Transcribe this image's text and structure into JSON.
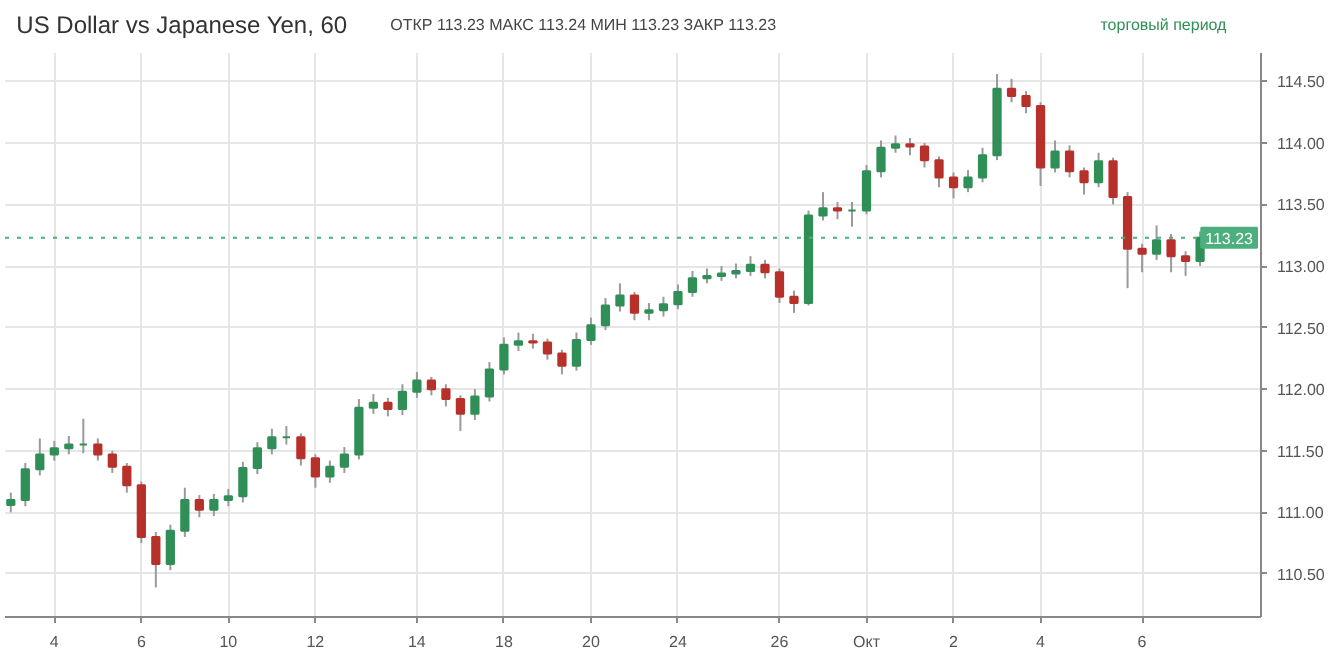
{
  "chart_data": {
    "type": "candlestick",
    "title": "US Dollar vs Japanese Yen, 60",
    "annotations": [
      "ОТКР 113.23 МАКС 113.24 МИН 113.23 ЗАКР 113.23",
      "торговый период"
    ],
    "categories": [
      null,
      null,
      null,
      "4",
      null,
      null,
      null,
      null,
      null,
      "6",
      null,
      null,
      null,
      null,
      null,
      "10",
      null,
      null,
      null,
      null,
      null,
      "12",
      null,
      null,
      null,
      null,
      null,
      null,
      "14",
      null,
      null,
      null,
      null,
      null,
      "18",
      null,
      null,
      null,
      null,
      null,
      "20",
      null,
      null,
      null,
      null,
      null,
      "24",
      null,
      null,
      null,
      null,
      null,
      null,
      "26",
      null,
      null,
      null,
      null,
      null,
      "Окт",
      null,
      null,
      null,
      null,
      null,
      "2",
      null,
      null,
      null,
      null,
      null,
      "4",
      null,
      null,
      null,
      null,
      null,
      null,
      "6",
      null,
      null,
      null,
      null
    ],
    "ohlc": [
      [
        111.06,
        111.16,
        111.0,
        111.1
      ],
      [
        111.1,
        111.4,
        111.05,
        111.35
      ],
      [
        111.35,
        111.6,
        111.3,
        111.47
      ],
      [
        111.47,
        111.58,
        111.42,
        111.52
      ],
      [
        111.52,
        111.62,
        111.47,
        111.55
      ],
      [
        111.55,
        111.76,
        111.48,
        111.55
      ],
      [
        111.55,
        111.6,
        111.42,
        111.47
      ],
      [
        111.47,
        111.5,
        111.32,
        111.37
      ],
      [
        111.37,
        111.4,
        111.16,
        111.22
      ],
      [
        111.22,
        111.25,
        110.75,
        110.8
      ],
      [
        110.8,
        110.84,
        110.39,
        110.58
      ],
      [
        110.58,
        110.9,
        110.53,
        110.85
      ],
      [
        110.85,
        111.2,
        110.8,
        111.1
      ],
      [
        111.1,
        111.14,
        110.96,
        111.02
      ],
      [
        111.02,
        111.15,
        110.97,
        111.1
      ],
      [
        111.1,
        111.19,
        111.05,
        111.13
      ],
      [
        111.13,
        111.41,
        111.08,
        111.36
      ],
      [
        111.36,
        111.57,
        111.31,
        111.52
      ],
      [
        111.52,
        111.68,
        111.47,
        111.61
      ],
      [
        111.61,
        111.7,
        111.55,
        111.61
      ],
      [
        111.61,
        111.64,
        111.38,
        111.44
      ],
      [
        111.44,
        111.47,
        111.2,
        111.29
      ],
      [
        111.29,
        111.42,
        111.24,
        111.37
      ],
      [
        111.37,
        111.53,
        111.32,
        111.47
      ],
      [
        111.47,
        111.92,
        111.43,
        111.85
      ],
      [
        111.85,
        111.96,
        111.8,
        111.89
      ],
      [
        111.89,
        111.93,
        111.78,
        111.84
      ],
      [
        111.84,
        112.04,
        111.79,
        111.98
      ],
      [
        111.98,
        112.14,
        111.93,
        112.07
      ],
      [
        112.07,
        112.1,
        111.95,
        112.0
      ],
      [
        112.0,
        112.04,
        111.86,
        111.92
      ],
      [
        111.92,
        111.95,
        111.66,
        111.8
      ],
      [
        111.8,
        112.0,
        111.75,
        111.94
      ],
      [
        111.94,
        112.22,
        111.9,
        112.16
      ],
      [
        112.16,
        112.42,
        112.12,
        112.36
      ],
      [
        112.36,
        112.46,
        112.31,
        112.39
      ],
      [
        112.39,
        112.45,
        112.33,
        112.38
      ],
      [
        112.38,
        112.41,
        112.24,
        112.29
      ],
      [
        112.29,
        112.32,
        112.12,
        112.19
      ],
      [
        112.19,
        112.46,
        112.15,
        112.4
      ],
      [
        112.4,
        112.58,
        112.36,
        112.52
      ],
      [
        112.52,
        112.74,
        112.48,
        112.68
      ],
      [
        112.68,
        112.86,
        112.63,
        112.76
      ],
      [
        112.76,
        112.79,
        112.56,
        112.62
      ],
      [
        112.62,
        112.7,
        112.56,
        112.64
      ],
      [
        112.64,
        112.75,
        112.59,
        112.69
      ],
      [
        112.69,
        112.85,
        112.65,
        112.79
      ],
      [
        112.79,
        112.96,
        112.75,
        112.9
      ],
      [
        112.9,
        112.98,
        112.86,
        112.92
      ],
      [
        112.92,
        113.0,
        112.88,
        112.94
      ],
      [
        112.94,
        113.02,
        112.9,
        112.96
      ],
      [
        112.96,
        113.08,
        112.92,
        113.01
      ],
      [
        113.01,
        113.05,
        112.9,
        112.95
      ],
      [
        112.95,
        112.98,
        112.7,
        112.75
      ],
      [
        112.75,
        112.8,
        112.62,
        112.7
      ],
      [
        112.7,
        113.45,
        112.68,
        113.41
      ],
      [
        113.41,
        113.6,
        113.37,
        113.47
      ],
      [
        113.47,
        113.52,
        113.38,
        113.45
      ],
      [
        113.45,
        113.52,
        113.32,
        113.45
      ],
      [
        113.45,
        113.82,
        113.42,
        113.77
      ],
      [
        113.77,
        114.02,
        113.72,
        113.96
      ],
      [
        113.96,
        114.06,
        113.92,
        113.99
      ],
      [
        113.99,
        114.04,
        113.9,
        113.97
      ],
      [
        113.97,
        114.0,
        113.8,
        113.86
      ],
      [
        113.86,
        113.89,
        113.64,
        113.72
      ],
      [
        113.72,
        113.76,
        113.55,
        113.64
      ],
      [
        113.64,
        113.78,
        113.6,
        113.72
      ],
      [
        113.72,
        113.96,
        113.68,
        113.9
      ],
      [
        113.9,
        114.56,
        113.86,
        114.44
      ],
      [
        114.44,
        114.52,
        114.33,
        114.38
      ],
      [
        114.38,
        114.42,
        114.24,
        114.3
      ],
      [
        114.3,
        114.33,
        113.65,
        113.8
      ],
      [
        113.8,
        114.02,
        113.76,
        113.93
      ],
      [
        113.93,
        113.98,
        113.72,
        113.77
      ],
      [
        113.77,
        113.8,
        113.58,
        113.68
      ],
      [
        113.68,
        113.92,
        113.64,
        113.85
      ],
      [
        113.85,
        113.88,
        113.5,
        113.56
      ],
      [
        113.56,
        113.6,
        112.82,
        113.14
      ],
      [
        113.14,
        113.18,
        112.95,
        113.1
      ],
      [
        113.1,
        113.33,
        113.05,
        113.21
      ],
      [
        113.21,
        113.26,
        112.95,
        113.08
      ],
      [
        113.08,
        113.12,
        112.92,
        113.04
      ],
      [
        113.04,
        113.28,
        113.0,
        113.23
      ]
    ],
    "colors": [
      "#2f8f57",
      "#2f8f57",
      "#2f8f57",
      "#2f8f57",
      "#2f8f57",
      "#2f8f57",
      "#b8302a",
      "#b8302a",
      "#b8302a",
      "#b8302a",
      "#b8302a",
      "#2f8f57",
      "#2f8f57",
      "#b8302a",
      "#2f8f57",
      "#2f8f57",
      "#2f8f57",
      "#2f8f57",
      "#2f8f57",
      "#2f8f57",
      "#b8302a",
      "#b8302a",
      "#2f8f57",
      "#2f8f57",
      "#2f8f57",
      "#2f8f57",
      "#b8302a",
      "#2f8f57",
      "#2f8f57",
      "#b8302a",
      "#b8302a",
      "#b8302a",
      "#2f8f57",
      "#2f8f57",
      "#2f8f57",
      "#2f8f57",
      "#b8302a",
      "#b8302a",
      "#b8302a",
      "#2f8f57",
      "#2f8f57",
      "#2f8f57",
      "#2f8f57",
      "#b8302a",
      "#2f8f57",
      "#2f8f57",
      "#2f8f57",
      "#2f8f57",
      "#2f8f57",
      "#2f8f57",
      "#2f8f57",
      "#2f8f57",
      "#b8302a",
      "#b8302a",
      "#b8302a",
      "#2f8f57",
      "#2f8f57",
      "#b8302a",
      "#2f8f57",
      "#2f8f57",
      "#2f8f57",
      "#2f8f57",
      "#b8302a",
      "#b8302a",
      "#b8302a",
      "#b8302a",
      "#2f8f57",
      "#2f8f57",
      "#2f8f57",
      "#b8302a",
      "#b8302a",
      "#b8302a",
      "#2f8f57",
      "#b8302a",
      "#b8302a",
      "#2f8f57",
      "#b8302a",
      "#b8302a",
      "#b8302a",
      "#2f8f57",
      "#b8302a",
      "#b8302a",
      "#2f8f57"
    ],
    "ylim": [
      110.15,
      114.73
    ],
    "yticks": [
      {
        "value": 110.5,
        "label": "110.50"
      },
      {
        "value": 111,
        "label": "111.00"
      },
      {
        "value": 111.5,
        "label": "111.50"
      },
      {
        "value": 112,
        "label": "112.00"
      },
      {
        "value": 112.5,
        "label": "112.50"
      },
      {
        "value": 113,
        "label": "113.00"
      },
      {
        "value": 113.5,
        "label": "113.50"
      },
      {
        "value": 114,
        "label": "114.00"
      },
      {
        "value": 114.5,
        "label": "114.50"
      }
    ],
    "ref_lines": [
      {
        "axis": "y",
        "value": 113.23,
        "label": "113.23",
        "color": "#4caf7d",
        "line_style": "dotted"
      }
    ],
    "grid": true
  }
}
